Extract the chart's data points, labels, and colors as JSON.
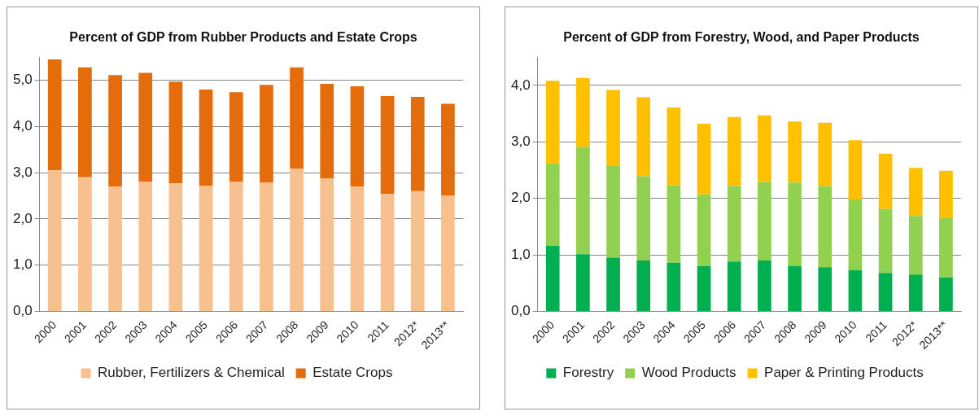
{
  "chart_data": [
    {
      "type": "bar",
      "title": "Percent of GDP from Rubber Products and Estate Crops",
      "stacked": true,
      "categories": [
        "2000",
        "2001",
        "2002",
        "2003",
        "2004",
        "2005",
        "2006",
        "2007",
        "2008",
        "2009",
        "2010",
        "2011",
        "2012*",
        "2013**"
      ],
      "series": [
        {
          "name": "Rubber, Fertilizers & Chemical",
          "color": "#f9c08f",
          "values": [
            3.05,
            2.9,
            2.7,
            2.8,
            2.77,
            2.72,
            2.8,
            2.78,
            3.08,
            2.88,
            2.7,
            2.54,
            2.6,
            2.5
          ]
        },
        {
          "name": "Estate Crops",
          "color": "#e46c0a",
          "values": [
            2.4,
            2.38,
            2.41,
            2.36,
            2.2,
            2.08,
            1.94,
            2.12,
            2.2,
            2.04,
            2.17,
            2.12,
            2.04,
            1.99
          ]
        }
      ],
      "ylim": [
        0,
        5.5
      ],
      "yticks": [
        {
          "value": 0,
          "label": "0,0"
        },
        {
          "value": 1,
          "label": "1,0"
        },
        {
          "value": 2,
          "label": "2,0"
        },
        {
          "value": 3,
          "label": "3,0"
        },
        {
          "value": 4,
          "label": "4,0"
        },
        {
          "value": 5,
          "label": "5,0"
        }
      ],
      "grid": "y",
      "legend": "bottom"
    },
    {
      "type": "bar",
      "title": "Percent of GDP from Forestry, Wood, and Paper Products",
      "stacked": true,
      "categories": [
        "2000",
        "2001",
        "2002",
        "2003",
        "2004",
        "2005",
        "2006",
        "2007",
        "2008",
        "2009",
        "2010",
        "2011",
        "2012*",
        "2013**"
      ],
      "series": [
        {
          "name": "Forestry",
          "color": "#00b050",
          "values": [
            1.16,
            1.01,
            0.95,
            0.9,
            0.86,
            0.8,
            0.88,
            0.9,
            0.8,
            0.78,
            0.73,
            0.68,
            0.65,
            0.6
          ]
        },
        {
          "name": "Wood Products",
          "color": "#92d050",
          "values": [
            1.46,
            1.9,
            1.62,
            1.49,
            1.37,
            1.27,
            1.34,
            1.39,
            1.48,
            1.44,
            1.25,
            1.13,
            1.04,
            1.05
          ]
        },
        {
          "name": "Paper & Printing Products",
          "color": "#ffc000",
          "values": [
            1.46,
            1.22,
            1.35,
            1.4,
            1.38,
            1.25,
            1.22,
            1.18,
            1.08,
            1.12,
            1.05,
            0.98,
            0.85,
            0.84
          ]
        }
      ],
      "ylim": [
        0,
        4.5
      ],
      "yticks": [
        {
          "value": 0,
          "label": "0,0"
        },
        {
          "value": 1,
          "label": "1,0"
        },
        {
          "value": 2,
          "label": "2,0"
        },
        {
          "value": 3,
          "label": "3,0"
        },
        {
          "value": 4,
          "label": "4,0"
        }
      ],
      "grid": "y",
      "legend": "bottom"
    }
  ]
}
